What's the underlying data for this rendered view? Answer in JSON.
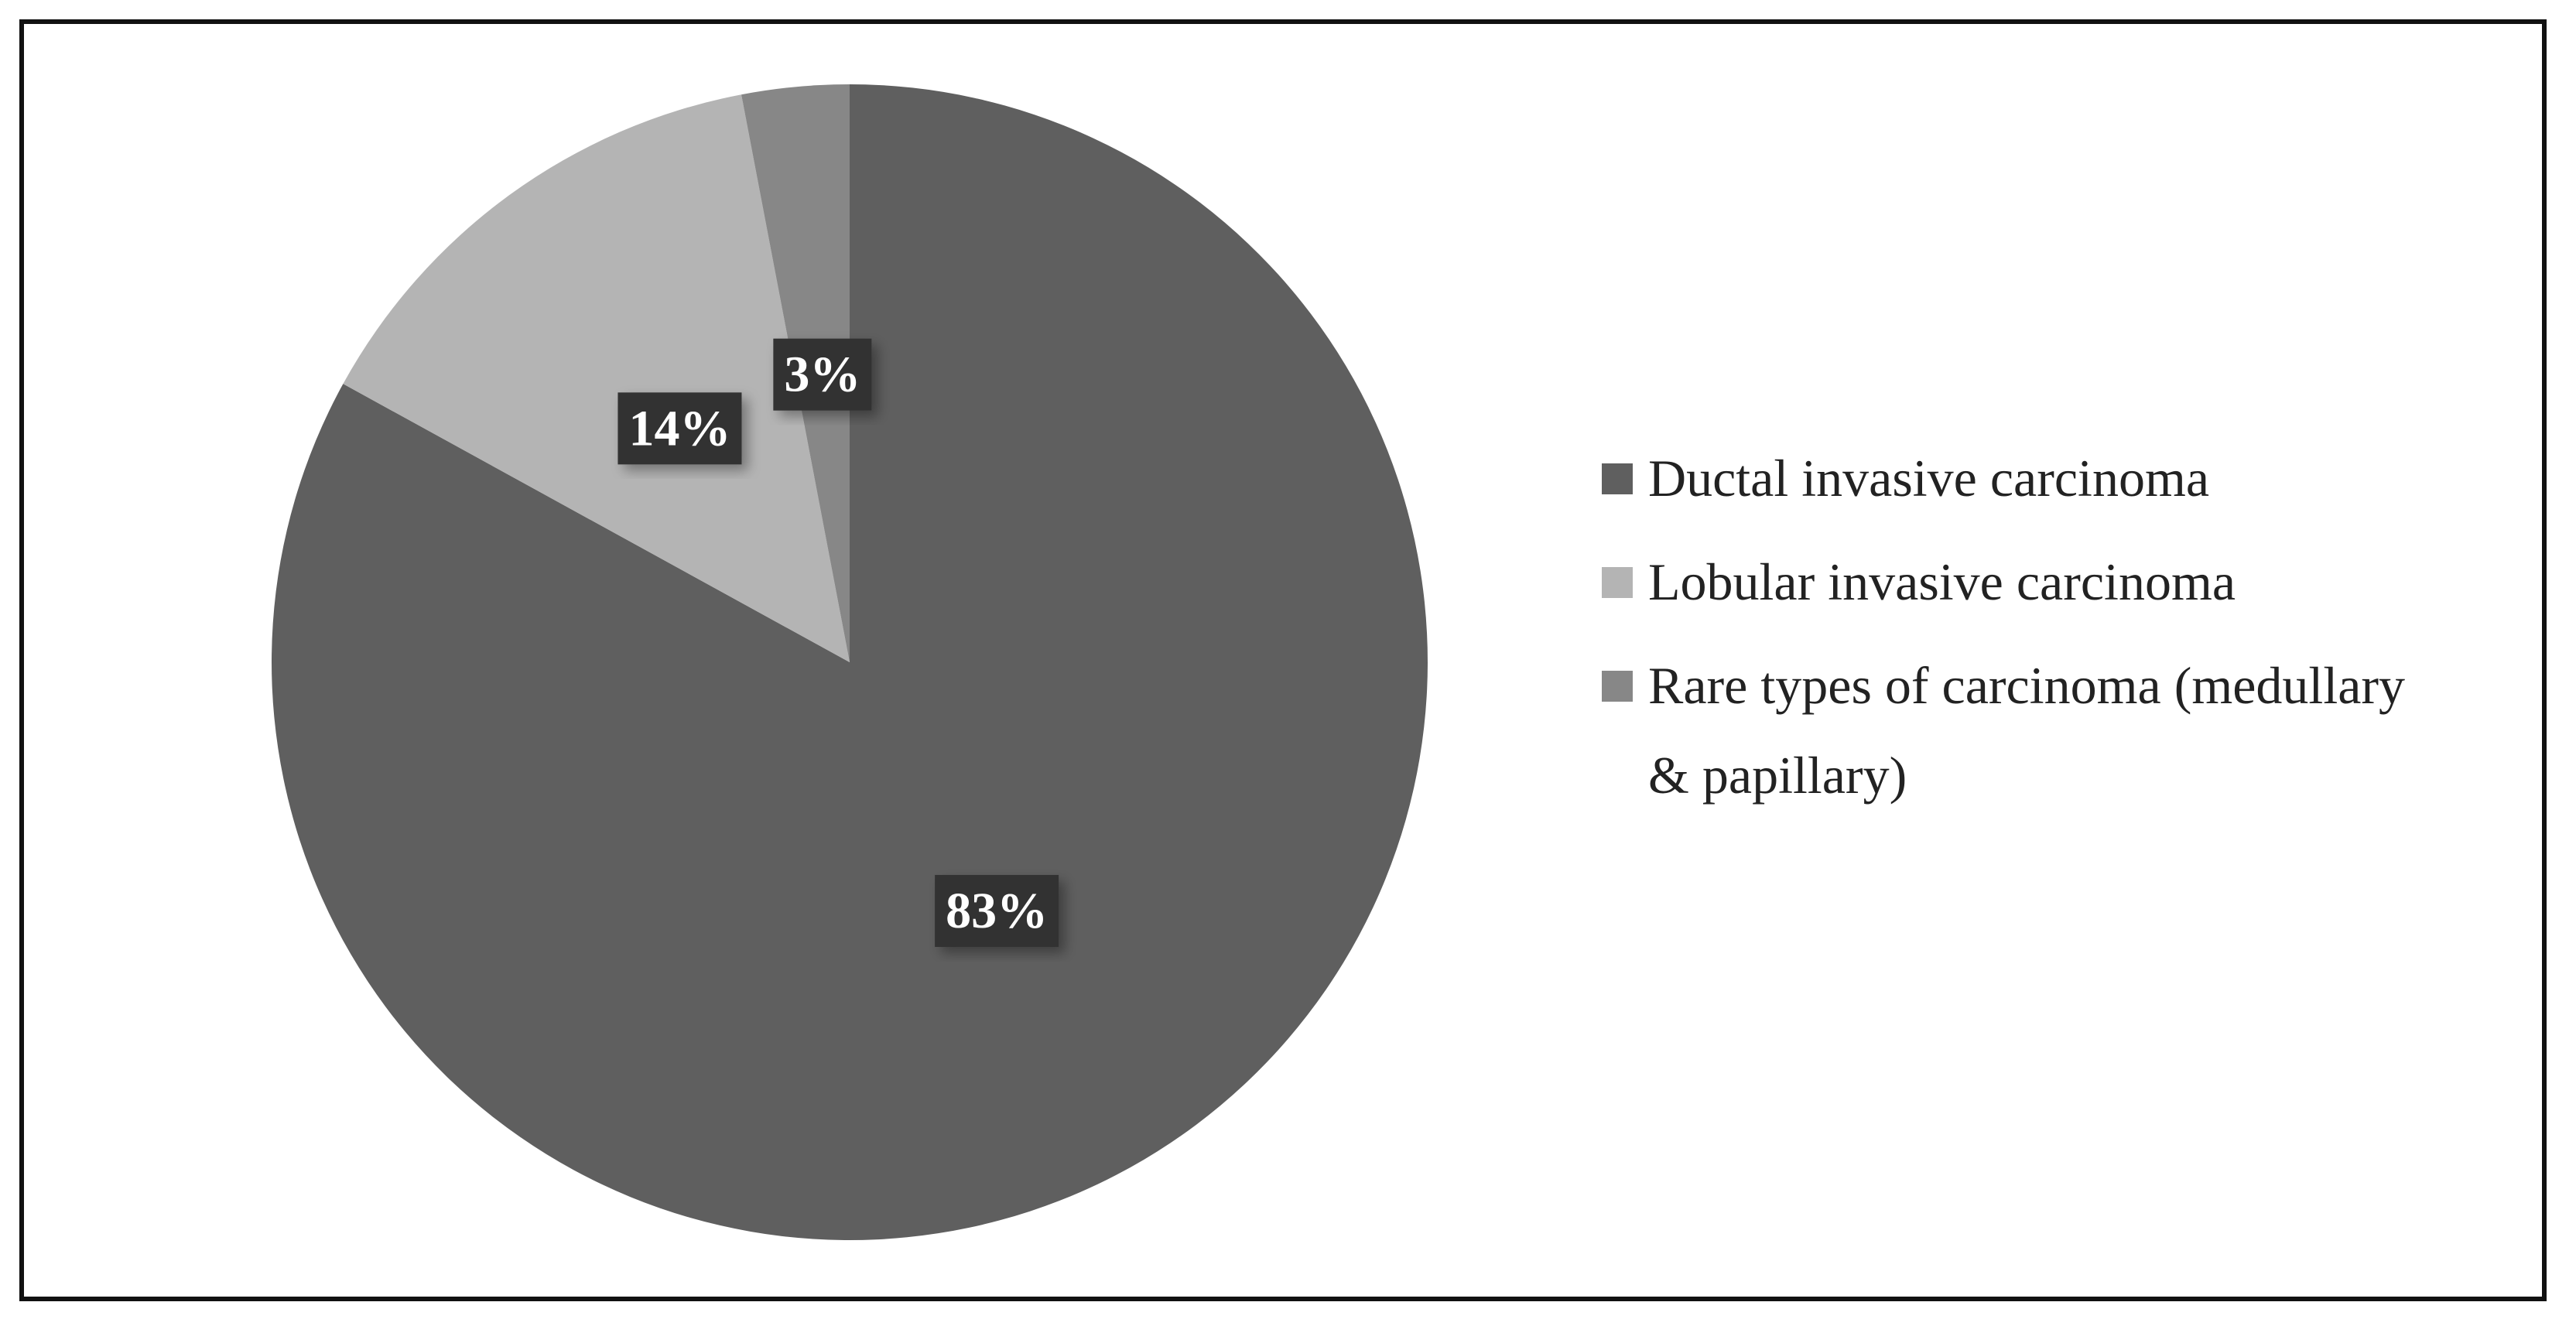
{
  "chart_data": {
    "type": "pie",
    "categories": [
      "Ductal invasive carcinoma",
      "Lobular invasive carcinoma",
      "Rare types of carcinoma (medullary & papillary)"
    ],
    "values": [
      83,
      14,
      3
    ],
    "value_labels": [
      "83%",
      "14%",
      "3%"
    ],
    "colors": [
      "#5f5f5f",
      "#b4b4b4",
      "#878787"
    ],
    "legend": "right"
  }
}
